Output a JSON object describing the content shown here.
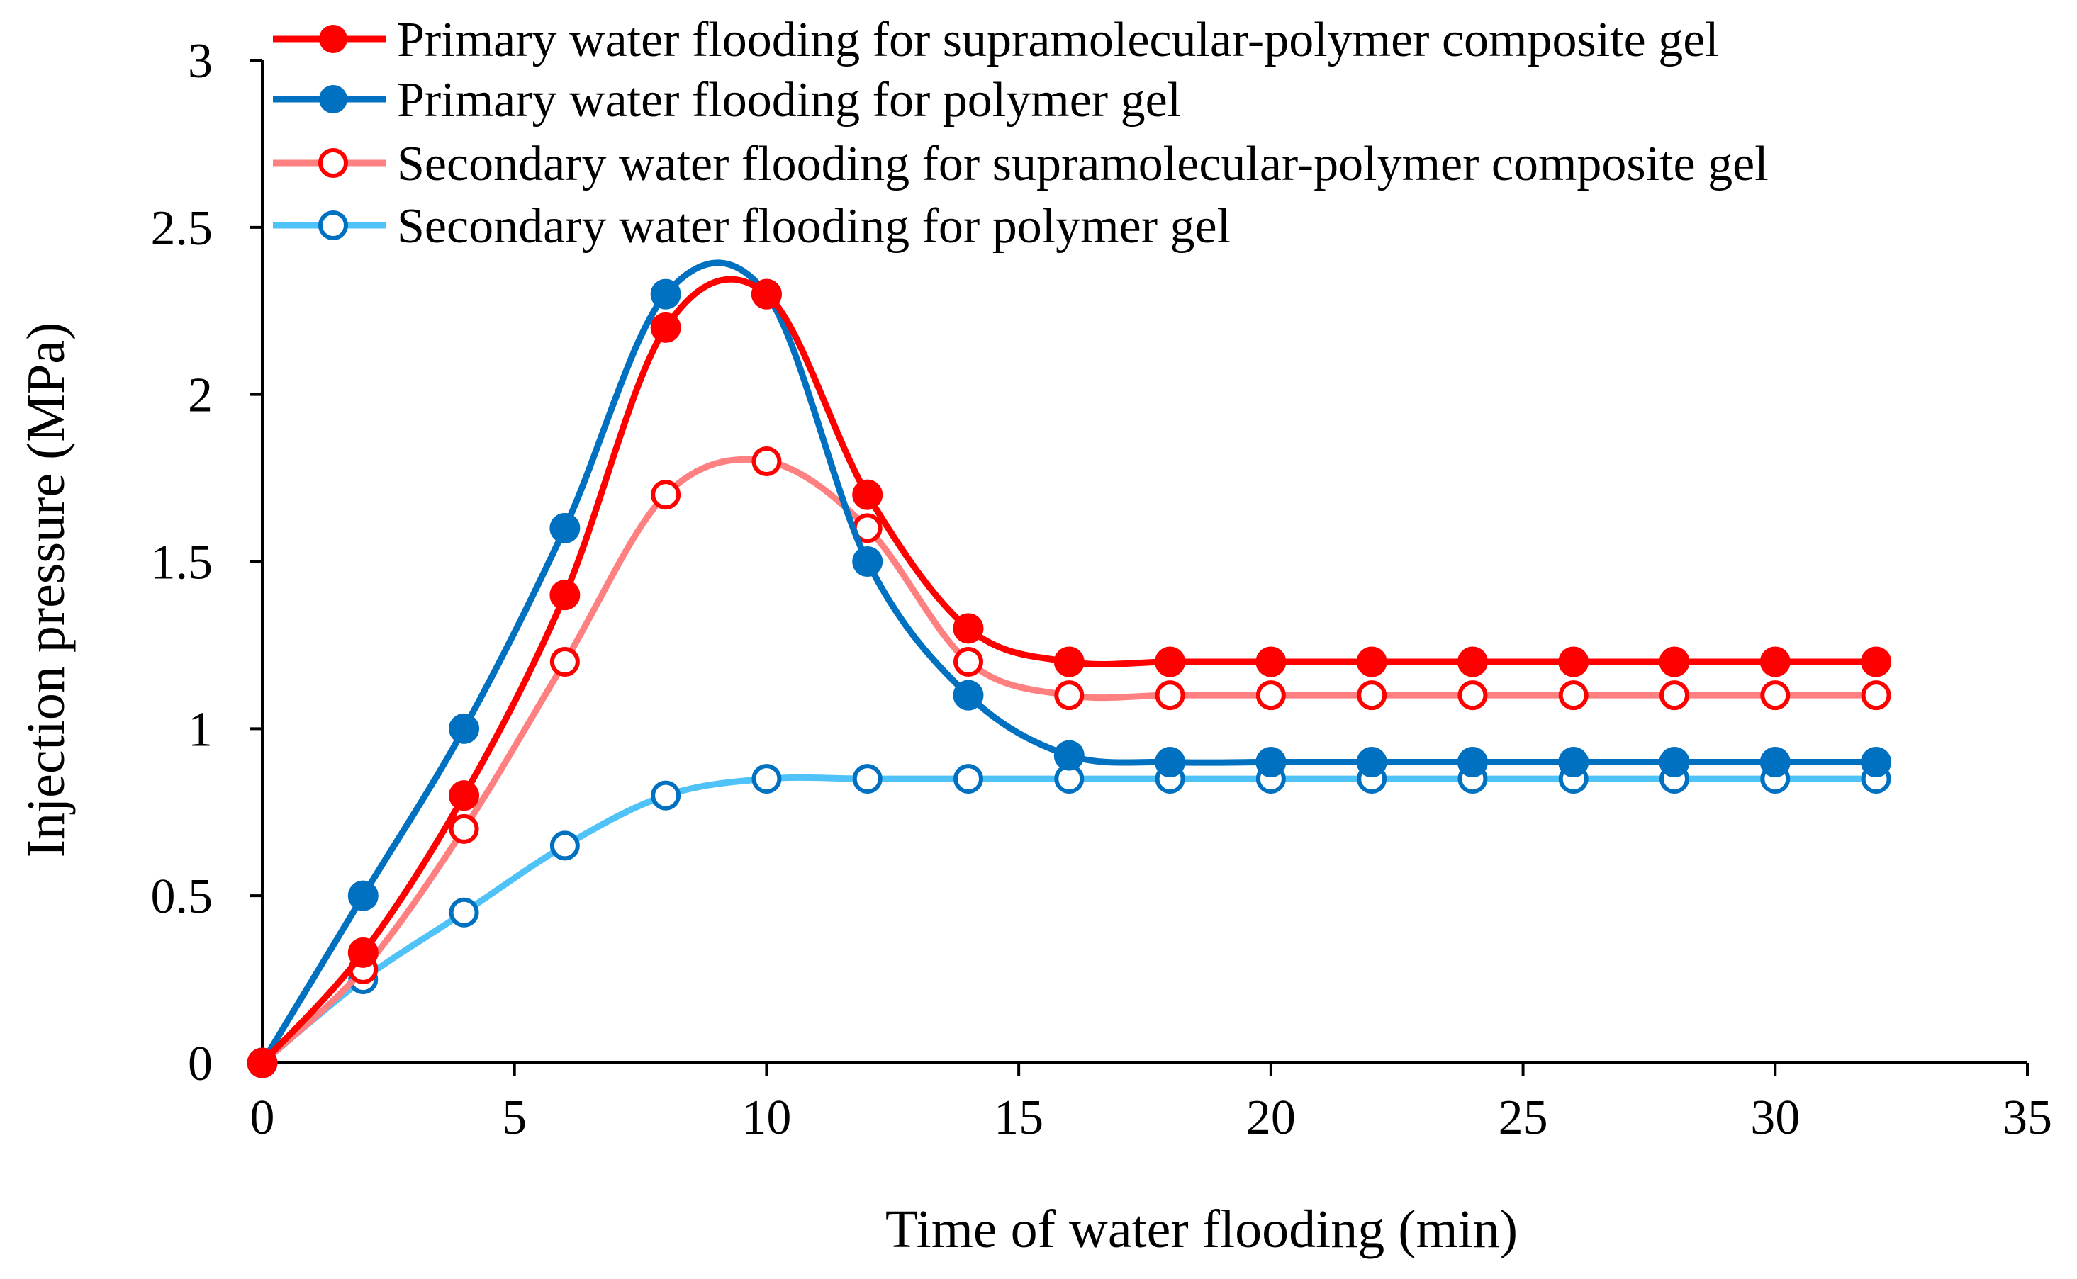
{
  "chart_data": {
    "type": "line",
    "title": "",
    "xlabel": "Time of water flooding (min)",
    "ylabel": "Injection pressure (MPa)",
    "xlim": [
      0,
      35
    ],
    "ylim": [
      0,
      3
    ],
    "xticks": [
      0,
      5,
      10,
      15,
      20,
      25,
      30,
      35
    ],
    "yticks": [
      0,
      0.5,
      1,
      1.5,
      2,
      2.5,
      3
    ],
    "xtick_labels": [
      "0",
      "5",
      "10",
      "15",
      "20",
      "25",
      "30",
      "35"
    ],
    "ytick_labels": [
      "0",
      "0.5",
      "1",
      "1.5",
      "2",
      "2.5",
      "3"
    ],
    "grid": false,
    "legend_position": "top-left",
    "x": [
      0,
      2,
      4,
      6,
      8,
      10,
      12,
      14,
      16,
      18,
      20,
      22,
      24,
      26,
      28,
      30,
      32
    ],
    "series": [
      {
        "name": "Primary water flooding for supramolecular-polymer composite gel",
        "color": "#ff0000",
        "marker": "filled-circle",
        "values": [
          0,
          0.33,
          0.8,
          1.4,
          2.2,
          2.3,
          1.7,
          1.3,
          1.2,
          1.2,
          1.2,
          1.2,
          1.2,
          1.2,
          1.2,
          1.2,
          1.2
        ]
      },
      {
        "name": "Primary water flooding for polymer gel",
        "color": "#0070c0",
        "marker": "filled-circle",
        "values": [
          0,
          0.5,
          1.0,
          1.6,
          2.3,
          2.3,
          1.5,
          1.1,
          0.92,
          0.9,
          0.9,
          0.9,
          0.9,
          0.9,
          0.9,
          0.9,
          0.9
        ]
      },
      {
        "name": "Secondary water flooding for supramolecular-polymer composite gel",
        "color": "#ff8080",
        "marker_color": "#ff0000",
        "marker": "open-circle",
        "values": [
          0,
          0.28,
          0.7,
          1.2,
          1.7,
          1.8,
          1.6,
          1.2,
          1.1,
          1.1,
          1.1,
          1.1,
          1.1,
          1.1,
          1.1,
          1.1,
          1.1
        ]
      },
      {
        "name": "Secondary water flooding for polymer gel",
        "color": "#4fc3f7",
        "marker_color": "#0070c0",
        "marker": "open-circle",
        "values": [
          0,
          0.25,
          0.45,
          0.65,
          0.8,
          0.85,
          0.85,
          0.85,
          0.85,
          0.85,
          0.85,
          0.85,
          0.85,
          0.85,
          0.85,
          0.85,
          0.85
        ]
      }
    ]
  }
}
